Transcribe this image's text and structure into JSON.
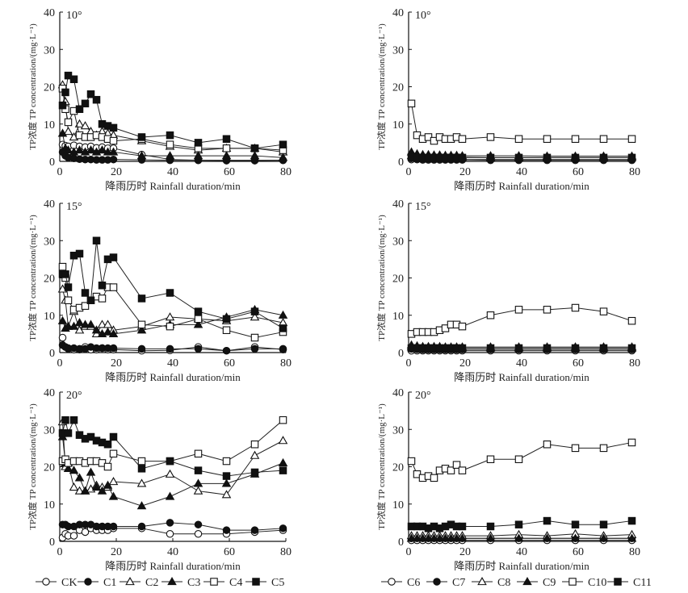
{
  "figure": {
    "legend_left": [
      "CK",
      "C1",
      "C2",
      "C3",
      "C4",
      "C5"
    ],
    "legend_right": [
      "C6",
      "C7",
      "C8",
      "C9",
      "C10",
      "C11"
    ]
  },
  "chart_data": [
    {
      "type": "line",
      "panel": "left-10",
      "slope_label": "10°",
      "xlabel": "降雨历时 Rainfall duration/min",
      "ylabel": "TP浓度 TP concentration/(mg·L⁻¹)",
      "xlim": [
        0,
        80
      ],
      "ylim": [
        0,
        40
      ],
      "x": [
        1,
        2,
        3,
        5,
        7,
        9,
        11,
        13,
        15,
        17,
        19,
        29,
        39,
        49,
        59,
        69,
        79
      ],
      "series": [
        {
          "name": "CK",
          "marker": "open-circle",
          "values": [
            4.5,
            4.2,
            4.0,
            4.3,
            4.0,
            3.8,
            4.0,
            3.6,
            3.8,
            3.5,
            3.5,
            1.8,
            0.5,
            0.3,
            0.2,
            0.2,
            0.3
          ]
        },
        {
          "name": "C1",
          "marker": "filled-circle",
          "values": [
            2.5,
            1.5,
            1.0,
            0.8,
            0.6,
            0.5,
            0.5,
            0.4,
            0.4,
            0.4,
            0.5,
            0.4,
            0.3,
            0.3,
            0.3,
            0.3,
            0.3
          ]
        },
        {
          "name": "C2",
          "marker": "open-triangle",
          "values": [
            20.5,
            16.0,
            8.0,
            6.5,
            10.0,
            9.5,
            8.0,
            7.0,
            8.0,
            7.5,
            7.0,
            5.5,
            4.0,
            3.0,
            3.5,
            3.5,
            2.5
          ]
        },
        {
          "name": "C3",
          "marker": "filled-triangle",
          "values": [
            7.5,
            3.5,
            3.0,
            2.5,
            3.0,
            2.5,
            3.0,
            2.5,
            3.0,
            2.5,
            2.5,
            1.5,
            1.5,
            1.5,
            1.5,
            1.5,
            1.0
          ]
        },
        {
          "name": "C4",
          "marker": "open-square",
          "values": [
            19.5,
            14.0,
            10.5,
            13.5,
            7.0,
            6.5,
            6.5,
            7.0,
            6.5,
            6.0,
            5.5,
            6.0,
            4.5,
            3.5,
            3.5,
            3.5,
            3.0
          ]
        },
        {
          "name": "C5",
          "marker": "filled-square",
          "values": [
            15.0,
            18.5,
            23.0,
            22.0,
            14.0,
            15.5,
            18.0,
            16.5,
            10.0,
            9.5,
            9.0,
            6.5,
            7.0,
            5.0,
            6.0,
            3.5,
            4.5
          ]
        }
      ]
    },
    {
      "type": "line",
      "panel": "right-10",
      "slope_label": "10°",
      "xlabel": "降雨历时 Rainfall duration/min",
      "ylabel": "TP浓度 TP concentration/(mg·L⁻¹)",
      "xlim": [
        0,
        80
      ],
      "ylim": [
        0,
        40
      ],
      "x": [
        1,
        3,
        5,
        7,
        9,
        11,
        13,
        15,
        17,
        19,
        29,
        39,
        49,
        59,
        69,
        79
      ],
      "series": [
        {
          "name": "C6",
          "marker": "open-circle",
          "values": [
            0.5,
            0.5,
            0.4,
            0.4,
            0.4,
            0.4,
            0.4,
            0.4,
            0.4,
            0.4,
            0.3,
            0.3,
            0.3,
            0.3,
            0.3,
            0.3
          ]
        },
        {
          "name": "C7",
          "marker": "filled-circle",
          "values": [
            0.8,
            0.7,
            0.6,
            0.6,
            0.6,
            0.6,
            0.5,
            0.5,
            0.5,
            0.5,
            0.5,
            0.5,
            0.5,
            0.5,
            0.5,
            0.5
          ]
        },
        {
          "name": "C8",
          "marker": "open-triangle",
          "values": [
            1.5,
            1.3,
            1.2,
            1.2,
            1.2,
            1.2,
            1.1,
            1.1,
            1.1,
            1.1,
            1.0,
            1.0,
            1.0,
            1.0,
            1.0,
            1.0
          ]
        },
        {
          "name": "C9",
          "marker": "filled-triangle",
          "values": [
            2.5,
            2.0,
            1.8,
            1.8,
            1.7,
            1.7,
            1.6,
            1.6,
            1.6,
            1.5,
            1.5,
            1.5,
            1.4,
            1.4,
            1.4,
            1.4
          ]
        },
        {
          "name": "C10",
          "marker": "open-square",
          "values": [
            15.5,
            7.0,
            6.0,
            6.5,
            5.5,
            6.5,
            6.0,
            6.0,
            6.5,
            6.0,
            6.5,
            6.0,
            6.0,
            6.0,
            6.0,
            6.0
          ]
        },
        {
          "name": "C11",
          "marker": "filled-square",
          "values": [
            1.2,
            1.0,
            1.0,
            1.0,
            1.0,
            1.0,
            1.0,
            1.0,
            1.0,
            1.0,
            1.0,
            1.0,
            1.0,
            1.0,
            1.0,
            1.0
          ]
        }
      ]
    },
    {
      "type": "line",
      "panel": "left-15",
      "slope_label": "15°",
      "xlabel": "降雨历时 Rainfall duration/min",
      "ylabel": "TP浓度 TP concentration/(mg·L⁻¹)",
      "xlim": [
        0,
        80
      ],
      "ylim": [
        0,
        40
      ],
      "x": [
        1,
        2,
        3,
        5,
        7,
        9,
        11,
        13,
        15,
        17,
        19,
        29,
        39,
        49,
        59,
        69,
        79
      ],
      "series": [
        {
          "name": "CK",
          "marker": "open-circle",
          "values": [
            4.0,
            1.5,
            1.0,
            0.8,
            0.8,
            1.5,
            0.8,
            0.8,
            1.2,
            0.8,
            0.8,
            0.5,
            0.6,
            1.5,
            0.5,
            1.5,
            0.8
          ]
        },
        {
          "name": "C1",
          "marker": "filled-circle",
          "values": [
            2.0,
            1.5,
            1.2,
            1.2,
            1.0,
            1.0,
            1.5,
            1.2,
            1.2,
            1.2,
            1.2,
            1.0,
            1.0,
            1.0,
            0.5,
            1.0,
            1.0
          ]
        },
        {
          "name": "C2",
          "marker": "open-triangle",
          "values": [
            17.0,
            14.0,
            7.0,
            11.0,
            6.0,
            7.0,
            7.0,
            5.0,
            7.5,
            7.5,
            6.0,
            7.0,
            9.5,
            9.0,
            8.5,
            9.5,
            8.0
          ]
        },
        {
          "name": "C3",
          "marker": "filled-triangle",
          "values": [
            8.5,
            6.5,
            7.0,
            7.0,
            8.0,
            7.5,
            7.5,
            6.0,
            5.0,
            5.5,
            5.0,
            6.0,
            7.5,
            7.5,
            9.5,
            11.5,
            10.0
          ]
        },
        {
          "name": "C4",
          "marker": "open-square",
          "values": [
            23.0,
            20.0,
            14.0,
            11.5,
            12.0,
            12.5,
            14.0,
            15.0,
            14.5,
            17.5,
            17.5,
            7.5,
            7.0,
            9.0,
            6.0,
            4.0,
            5.5
          ]
        },
        {
          "name": "C5",
          "marker": "filled-square",
          "values": [
            21.0,
            21.0,
            17.5,
            26.0,
            26.5,
            16.0,
            14.0,
            30.0,
            18.0,
            25.0,
            25.5,
            14.5,
            16.0,
            11.0,
            9.0,
            11.0,
            6.5
          ]
        }
      ]
    },
    {
      "type": "line",
      "panel": "right-15",
      "slope_label": "15°",
      "xlabel": "降雨历时 Rainfall duration/min",
      "ylabel": "TP浓度 TP concentration/(mg·L⁻¹)",
      "xlim": [
        0,
        80
      ],
      "ylim": [
        0,
        40
      ],
      "x": [
        1,
        3,
        5,
        7,
        9,
        11,
        13,
        15,
        17,
        19,
        29,
        39,
        49,
        59,
        69,
        79
      ],
      "series": [
        {
          "name": "C6",
          "marker": "open-circle",
          "values": [
            0.5,
            0.5,
            0.5,
            0.5,
            0.5,
            0.5,
            0.5,
            0.5,
            0.5,
            0.5,
            0.5,
            0.5,
            0.5,
            0.5,
            0.5,
            0.5
          ]
        },
        {
          "name": "C7",
          "marker": "filled-circle",
          "values": [
            1.0,
            0.9,
            0.8,
            0.8,
            0.8,
            0.8,
            0.8,
            0.8,
            0.8,
            0.8,
            0.8,
            0.8,
            0.8,
            0.8,
            0.8,
            0.8
          ]
        },
        {
          "name": "C8",
          "marker": "open-triangle",
          "values": [
            1.5,
            1.3,
            1.2,
            1.2,
            1.2,
            1.2,
            1.2,
            1.2,
            1.2,
            1.2,
            1.2,
            1.2,
            1.2,
            1.2,
            1.2,
            1.2
          ]
        },
        {
          "name": "C9",
          "marker": "filled-triangle",
          "values": [
            2.0,
            1.8,
            1.6,
            1.6,
            1.6,
            1.6,
            1.5,
            1.5,
            1.5,
            1.5,
            1.5,
            1.5,
            1.5,
            1.5,
            1.5,
            1.5
          ]
        },
        {
          "name": "C10",
          "marker": "open-square",
          "values": [
            5.0,
            5.5,
            5.5,
            5.5,
            5.5,
            6.0,
            6.5,
            7.5,
            7.5,
            7.0,
            10.0,
            11.5,
            11.5,
            12.0,
            11.0,
            8.5
          ]
        },
        {
          "name": "C11",
          "marker": "filled-square",
          "values": [
            1.2,
            1.2,
            1.2,
            1.2,
            1.2,
            1.2,
            1.2,
            1.2,
            1.2,
            1.2,
            1.2,
            1.2,
            1.2,
            1.2,
            1.2,
            1.2
          ]
        }
      ]
    },
    {
      "type": "line",
      "panel": "left-20",
      "slope_label": "20°",
      "xlabel": "降雨历时 Rainfall duration/min",
      "ylabel": "TP浓度 TP concentration/(mg·L⁻¹)",
      "xlim": [
        0,
        80
      ],
      "ylim": [
        0,
        40
      ],
      "x": [
        1,
        2,
        3,
        5,
        7,
        9,
        11,
        13,
        15,
        17,
        19,
        29,
        39,
        49,
        59,
        69,
        79
      ],
      "series": [
        {
          "name": "CK",
          "marker": "open-circle",
          "values": [
            1.0,
            2.0,
            1.5,
            1.5,
            3.0,
            2.5,
            3.5,
            3.0,
            3.0,
            3.0,
            3.5,
            3.5,
            2.0,
            2.0,
            2.0,
            2.5,
            3.0
          ]
        },
        {
          "name": "C1",
          "marker": "filled-circle",
          "values": [
            4.5,
            4.5,
            4.0,
            4.0,
            4.5,
            4.5,
            4.5,
            4.0,
            4.0,
            4.0,
            4.0,
            4.0,
            5.0,
            4.5,
            3.0,
            3.0,
            3.5
          ]
        },
        {
          "name": "C2",
          "marker": "open-triangle",
          "values": [
            32.0,
            20.0,
            21.0,
            14.5,
            13.5,
            13.5,
            14.0,
            15.0,
            14.5,
            14.5,
            16.0,
            15.5,
            18.0,
            13.5,
            12.5,
            23.0,
            27.0
          ]
        },
        {
          "name": "C3",
          "marker": "filled-triangle",
          "values": [
            28.0,
            21.0,
            19.5,
            19.0,
            17.0,
            13.5,
            18.5,
            14.5,
            13.5,
            15.0,
            12.0,
            9.5,
            12.0,
            15.5,
            15.5,
            18.0,
            21.0
          ]
        },
        {
          "name": "C4",
          "marker": "open-square",
          "values": [
            21.5,
            22.0,
            21.0,
            21.5,
            21.5,
            21.0,
            21.5,
            21.5,
            21.0,
            20.0,
            23.5,
            21.5,
            21.5,
            23.5,
            21.5,
            26.0,
            32.5
          ]
        },
        {
          "name": "C5",
          "marker": "filled-square",
          "values": [
            29.0,
            32.5,
            29.0,
            32.5,
            28.5,
            27.5,
            28.0,
            27.0,
            26.5,
            26.0,
            28.0,
            19.5,
            21.5,
            19.0,
            17.5,
            18.5,
            19.0
          ]
        }
      ]
    },
    {
      "type": "line",
      "panel": "right-20",
      "slope_label": "20°",
      "xlabel": "降雨历时 Rainfall duration/min",
      "ylabel": "TP浓度 TP concentration/(mg·L⁻¹)",
      "xlim": [
        0,
        80
      ],
      "ylim": [
        0,
        40
      ],
      "x": [
        1,
        3,
        5,
        7,
        9,
        11,
        13,
        15,
        17,
        19,
        29,
        39,
        49,
        59,
        69,
        79
      ],
      "series": [
        {
          "name": "C6",
          "marker": "open-circle",
          "values": [
            0.3,
            0.3,
            0.3,
            0.3,
            0.3,
            0.3,
            0.3,
            0.3,
            0.3,
            0.3,
            0.3,
            0.3,
            0.3,
            0.3,
            0.3,
            0.3
          ]
        },
        {
          "name": "C7",
          "marker": "filled-circle",
          "values": [
            0.8,
            0.8,
            0.8,
            0.8,
            0.8,
            0.8,
            0.8,
            0.8,
            0.8,
            0.8,
            0.8,
            0.8,
            0.8,
            0.8,
            0.8,
            0.8
          ]
        },
        {
          "name": "C8",
          "marker": "open-triangle",
          "values": [
            1.5,
            1.5,
            1.5,
            1.5,
            1.5,
            1.5,
            1.5,
            1.5,
            1.5,
            1.5,
            1.5,
            1.8,
            1.5,
            2.0,
            1.5,
            1.8
          ]
        },
        {
          "name": "C9",
          "marker": "filled-triangle",
          "values": [
            0.8,
            0.8,
            0.8,
            0.8,
            0.8,
            0.8,
            0.8,
            0.8,
            0.8,
            0.8,
            0.8,
            0.8,
            0.8,
            0.8,
            0.8,
            0.8
          ]
        },
        {
          "name": "C10",
          "marker": "open-square",
          "values": [
            21.5,
            18.0,
            17.0,
            17.5,
            17.0,
            19.0,
            19.5,
            19.0,
            20.5,
            19.0,
            22.0,
            22.0,
            26.0,
            25.0,
            25.0,
            26.5
          ]
        },
        {
          "name": "C11",
          "marker": "filled-square",
          "values": [
            4.0,
            4.0,
            4.0,
            3.5,
            4.0,
            3.5,
            4.0,
            4.5,
            4.0,
            4.0,
            4.0,
            4.5,
            5.5,
            4.5,
            4.5,
            5.5
          ]
        }
      ]
    }
  ]
}
